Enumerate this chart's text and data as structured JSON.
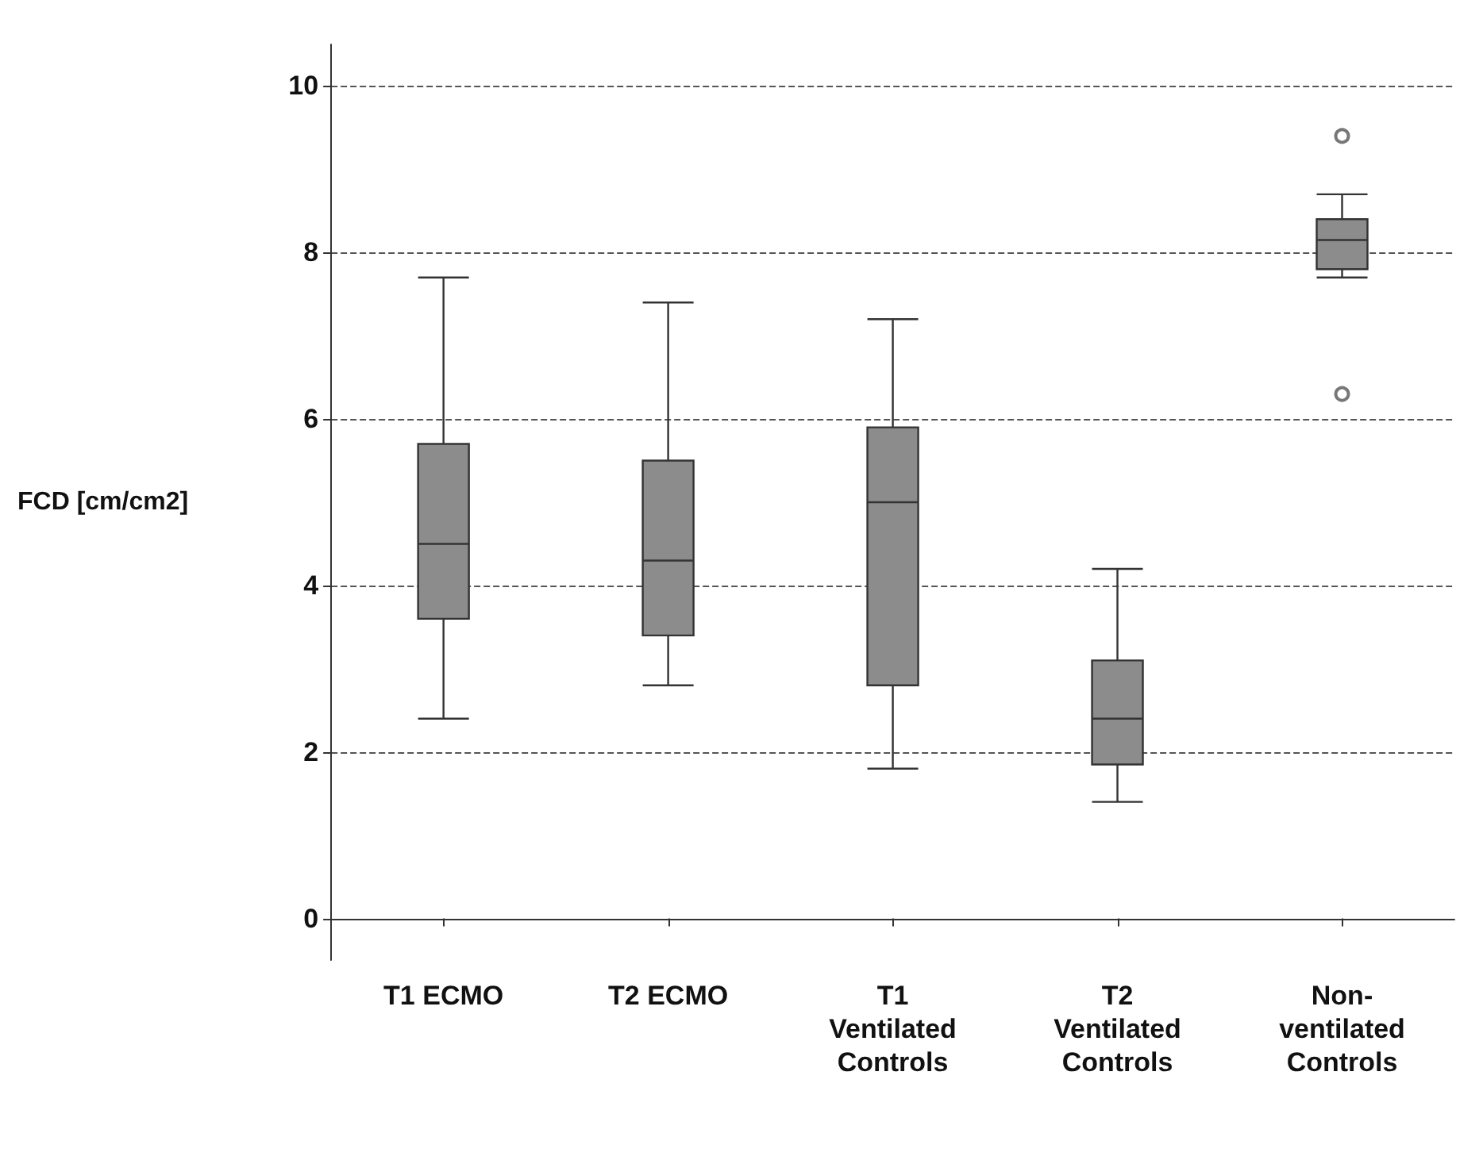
{
  "chart_data": {
    "type": "box",
    "ylabel": "FCD [cm/cm2]",
    "categories": [
      "T1 ECMO",
      "T2 ECMO",
      "T1\nVentilated\nControls",
      "T2\nVentilated\nControls",
      "Non-\nventilated\nControls"
    ],
    "color": "#8c8c8c",
    "boxes": [
      {
        "low": 2.4,
        "q1": 3.6,
        "median": 4.5,
        "q3": 5.7,
        "high": 7.7
      },
      {
        "low": 2.8,
        "q1": 3.4,
        "median": 4.3,
        "q3": 5.5,
        "high": 7.4
      },
      {
        "low": 1.8,
        "q1": 2.8,
        "median": 5.0,
        "q3": 5.9,
        "high": 7.2
      },
      {
        "low": 1.4,
        "q1": 1.85,
        "median": 2.4,
        "q3": 3.1,
        "high": 4.2
      },
      {
        "low": 7.7,
        "q1": 7.8,
        "median": 8.15,
        "q3": 8.4,
        "high": 8.7,
        "outliers": [
          9.4,
          6.3
        ]
      }
    ],
    "ylim": [
      -0.5,
      10.5
    ],
    "yticks": [
      0,
      2,
      4,
      6,
      8,
      10
    ],
    "grid": "y",
    "line_style": "dashed"
  }
}
